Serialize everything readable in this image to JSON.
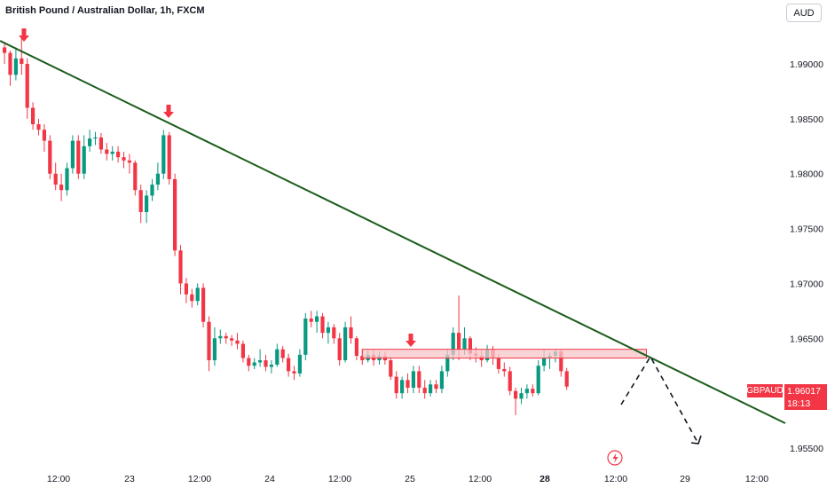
{
  "header": {
    "title": "British Pound / Australian Dollar, 1h, FXCM"
  },
  "toolbar": {
    "currency_label": "AUD"
  },
  "badges": {
    "symbol": "GBPAUD",
    "last_price": "1.96017",
    "countdown": "18:13"
  },
  "colors": {
    "up": "#089981",
    "down": "#f23645",
    "trendline": "#1a5c1a",
    "zone_fill": "#f7c6c9",
    "zone_border": "#f23645",
    "arrow": "#f23645"
  },
  "icons": {
    "bottom_marker": "lightning-icon",
    "arrows": "down-arrow-icon"
  },
  "chart_data": {
    "type": "candlestick",
    "title": "British Pound / Australian Dollar, 1h, FXCM",
    "y_ticks": [
      "1.99000",
      "1.98500",
      "1.98000",
      "1.97500",
      "1.97000",
      "1.96500",
      "1.95500"
    ],
    "ylim": [
      1.9545,
      1.9935
    ],
    "x_ticks": [
      "12:00",
      "23",
      "12:00",
      "24",
      "12:00",
      "25",
      "12:00",
      "28",
      "12:00",
      "29",
      "12:00"
    ],
    "grid": false,
    "legend": "none",
    "last_price": 1.96017,
    "candles_ohlc": [
      [
        1.9915,
        1.992,
        1.99,
        1.991
      ],
      [
        1.991,
        1.9912,
        1.988,
        1.989
      ],
      [
        1.989,
        1.9915,
        1.9885,
        1.9905
      ],
      [
        1.9905,
        1.9925,
        1.989,
        1.99
      ],
      [
        1.99,
        1.9905,
        1.985,
        1.986
      ],
      [
        1.986,
        1.9865,
        1.984,
        1.9845
      ],
      [
        1.9845,
        1.985,
        1.9835,
        1.984
      ],
      [
        1.984,
        1.9845,
        1.982,
        1.983
      ],
      [
        1.983,
        1.9835,
        1.9795,
        1.98
      ],
      [
        1.98,
        1.981,
        1.9785,
        1.979
      ],
      [
        1.979,
        1.98,
        1.9775,
        1.9785
      ],
      [
        1.9785,
        1.981,
        1.978,
        1.9805
      ],
      [
        1.9805,
        1.9835,
        1.98,
        1.983
      ],
      [
        1.983,
        1.9835,
        1.9795,
        1.98
      ],
      [
        1.98,
        1.9835,
        1.9795,
        1.9825
      ],
      [
        1.9825,
        1.984,
        1.982,
        1.9832
      ],
      [
        1.9832,
        1.9838,
        1.9826,
        1.9833
      ],
      [
        1.9833,
        1.9837,
        1.9818,
        1.9822
      ],
      [
        1.9822,
        1.9828,
        1.9812,
        1.9818
      ],
      [
        1.9818,
        1.9825,
        1.9812,
        1.982
      ],
      [
        1.982,
        1.9825,
        1.981,
        1.9815
      ],
      [
        1.9815,
        1.982,
        1.9805,
        1.9812
      ],
      [
        1.9812,
        1.9818,
        1.98,
        1.981
      ],
      [
        1.981,
        1.9812,
        1.978,
        1.9785
      ],
      [
        1.9785,
        1.979,
        1.9755,
        1.9765
      ],
      [
        1.9765,
        1.9785,
        1.9755,
        1.978
      ],
      [
        1.978,
        1.9795,
        1.9775,
        1.979
      ],
      [
        1.979,
        1.981,
        1.9785,
        1.98
      ],
      [
        1.98,
        1.984,
        1.9795,
        1.9835
      ],
      [
        1.9835,
        1.9838,
        1.979,
        1.9795
      ],
      [
        1.9795,
        1.98,
        1.9725,
        1.973
      ],
      [
        1.973,
        1.9735,
        1.969,
        1.97
      ],
      [
        1.97,
        1.9705,
        1.9682,
        1.969
      ],
      [
        1.969,
        1.9695,
        1.9678,
        1.9684
      ],
      [
        1.9684,
        1.97,
        1.968,
        1.9696
      ],
      [
        1.9696,
        1.97,
        1.966,
        1.9665
      ],
      [
        1.9665,
        1.967,
        1.962,
        1.963
      ],
      [
        1.963,
        1.966,
        1.9625,
        1.965
      ],
      [
        1.965,
        1.9658,
        1.9645,
        1.9652
      ],
      [
        1.9652,
        1.9655,
        1.9645,
        1.965
      ],
      [
        1.965,
        1.9653,
        1.9643,
        1.9648
      ],
      [
        1.9648,
        1.9655,
        1.964,
        1.9645
      ],
      [
        1.9645,
        1.9648,
        1.9628,
        1.9632
      ],
      [
        1.9632,
        1.9635,
        1.962,
        1.9625
      ],
      [
        1.9625,
        1.9632,
        1.9622,
        1.9628
      ],
      [
        1.9628,
        1.964,
        1.9624,
        1.963
      ],
      [
        1.963,
        1.9635,
        1.962,
        1.9624
      ],
      [
        1.9624,
        1.963,
        1.9618,
        1.9626
      ],
      [
        1.9626,
        1.9645,
        1.9624,
        1.964
      ],
      [
        1.964,
        1.9643,
        1.9628,
        1.9632
      ],
      [
        1.9632,
        1.9636,
        1.9615,
        1.962
      ],
      [
        1.962,
        1.9625,
        1.9612,
        1.9618
      ],
      [
        1.9618,
        1.964,
        1.9615,
        1.9635
      ],
      [
        1.9635,
        1.9673,
        1.963,
        1.9668
      ],
      [
        1.9668,
        1.9675,
        1.966,
        1.9665
      ],
      [
        1.9665,
        1.9675,
        1.9655,
        1.967
      ],
      [
        1.967,
        1.9673,
        1.965,
        1.9655
      ],
      [
        1.9655,
        1.9665,
        1.9645,
        1.966
      ],
      [
        1.966,
        1.9663,
        1.9645,
        1.965
      ],
      [
        1.965,
        1.9655,
        1.9625,
        1.963
      ],
      [
        1.963,
        1.9665,
        1.9628,
        1.966
      ],
      [
        1.966,
        1.967,
        1.9645,
        1.965
      ],
      [
        1.965,
        1.9652,
        1.963,
        1.9634
      ],
      [
        1.9634,
        1.964,
        1.9626,
        1.963
      ],
      [
        1.963,
        1.964,
        1.9628,
        1.9635
      ],
      [
        1.9635,
        1.964,
        1.9625,
        1.963
      ],
      [
        1.963,
        1.9638,
        1.9626,
        1.9634
      ],
      [
        1.9634,
        1.9638,
        1.9626,
        1.963
      ],
      [
        1.963,
        1.9633,
        1.9612,
        1.9615
      ],
      [
        1.9615,
        1.962,
        1.9595,
        1.96
      ],
      [
        1.96,
        1.9615,
        1.9595,
        1.9612
      ],
      [
        1.9612,
        1.9618,
        1.96,
        1.9605
      ],
      [
        1.9605,
        1.9625,
        1.96,
        1.962
      ],
      [
        1.962,
        1.9625,
        1.96,
        1.9605
      ],
      [
        1.9605,
        1.9612,
        1.9595,
        1.96
      ],
      [
        1.96,
        1.9612,
        1.9597,
        1.9608
      ],
      [
        1.9608,
        1.9612,
        1.96,
        1.9604
      ],
      [
        1.9604,
        1.9625,
        1.96,
        1.962
      ],
      [
        1.962,
        1.964,
        1.9615,
        1.9635
      ],
      [
        1.9635,
        1.966,
        1.963,
        1.9655
      ],
      [
        1.9655,
        1.9689,
        1.963,
        1.964
      ],
      [
        1.964,
        1.966,
        1.9635,
        1.965
      ],
      [
        1.965,
        1.9652,
        1.963,
        1.9636
      ],
      [
        1.9636,
        1.9642,
        1.9628,
        1.9634
      ],
      [
        1.9634,
        1.964,
        1.9624,
        1.963
      ],
      [
        1.963,
        1.9644,
        1.9628,
        1.964
      ],
      [
        1.964,
        1.9643,
        1.9626,
        1.9632
      ],
      [
        1.9632,
        1.9636,
        1.9618,
        1.9622
      ],
      [
        1.9622,
        1.9628,
        1.9615,
        1.962
      ],
      [
        1.962,
        1.9624,
        1.9598,
        1.9602
      ],
      [
        1.9602,
        1.9605,
        1.958,
        1.9595
      ],
      [
        1.9595,
        1.9605,
        1.959,
        1.96
      ],
      [
        1.96,
        1.9608,
        1.9595,
        1.9604
      ],
      [
        1.9604,
        1.9608,
        1.9597,
        1.96
      ],
      [
        1.96,
        1.963,
        1.9598,
        1.9625
      ],
      [
        1.9625,
        1.964,
        1.962,
        1.9632
      ],
      [
        1.9632,
        1.9637,
        1.9622,
        1.9634
      ],
      [
        1.9634,
        1.964,
        1.9628,
        1.9638
      ],
      [
        1.9638,
        1.964,
        1.9615,
        1.962
      ],
      [
        1.962,
        1.9623,
        1.9603,
        1.9606
      ]
    ],
    "annotations": {
      "trendline": {
        "from": {
          "candle": 0,
          "price": 1.9921
        },
        "to": {
          "candle": 119,
          "price": 1.9572
        }
      },
      "resistance_zone": {
        "from_candle": 63,
        "to_candle": 106,
        "low": 1.9632,
        "high": 1.964
      },
      "projection_path": [
        {
          "candle": 100,
          "price": 1.9605
        },
        {
          "candle": 103,
          "price": 1.9638
        },
        {
          "candle": 110,
          "price": 1.9555
        }
      ],
      "down_arrows": [
        {
          "candle": 2,
          "price": 1.9926
        },
        {
          "candle": 27,
          "price": 1.9862
        },
        {
          "candle": 64,
          "price": 1.9645
        }
      ]
    }
  }
}
